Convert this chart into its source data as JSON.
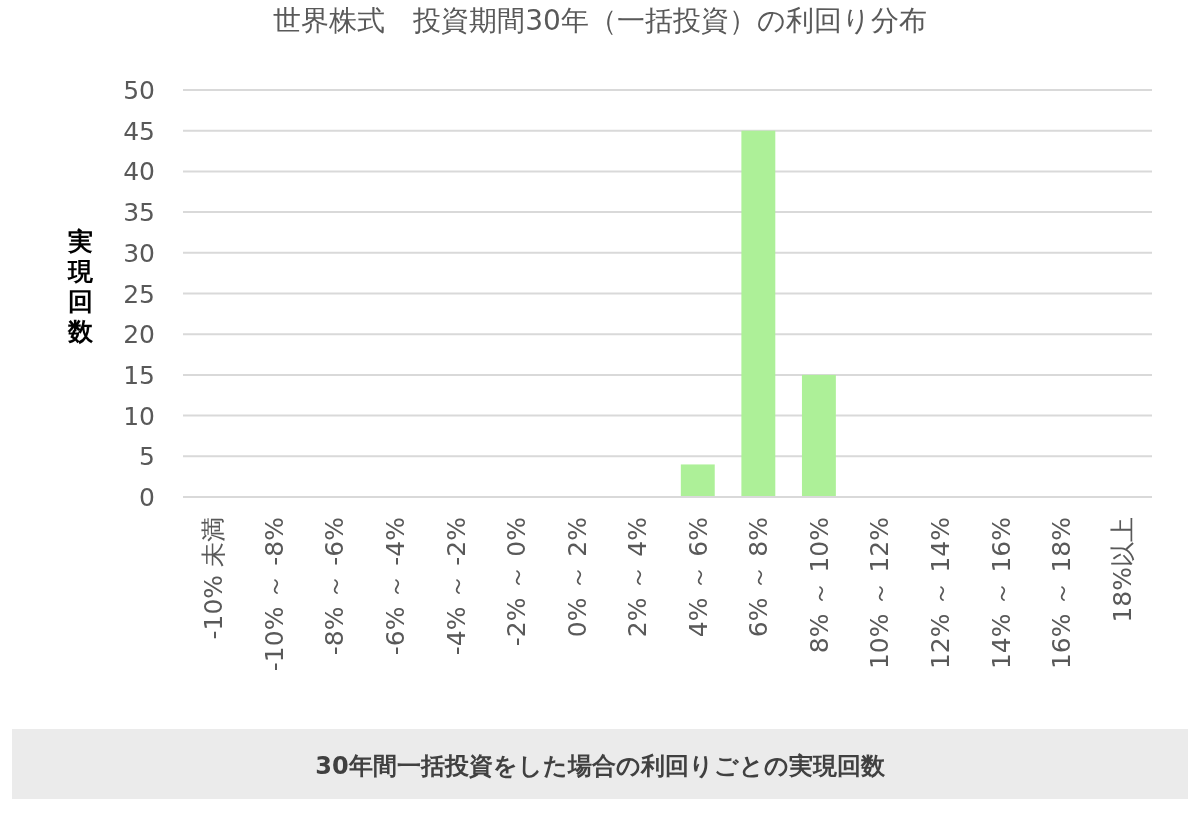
{
  "chart_data": {
    "type": "bar",
    "title": "世界株式　投資期間30年（一括投資）の利回り分布",
    "ylabel": "実現回数",
    "categories": [
      "-10% 未満",
      "-10% ～ -8%",
      "-8% ～ -6%",
      "-6% ～ -4%",
      "-4% ～ -2%",
      "-2% ～ 0%",
      "0% ～ 2%",
      "2% ～ 4%",
      "4% ～ 6%",
      "6% ～ 8%",
      "8% ～ 10%",
      "10% ～ 12%",
      "12% ～ 14%",
      "14% ～ 16%",
      "16% ～ 18%",
      "18%以上"
    ],
    "values": [
      0,
      0,
      0,
      0,
      0,
      0,
      0,
      0,
      4,
      45,
      15,
      0,
      0,
      0,
      0,
      0
    ],
    "color": "#adf098",
    "ylim": [
      0,
      50
    ],
    "yticks": [
      0,
      5,
      10,
      15,
      20,
      25,
      30,
      35,
      40,
      45,
      50
    ],
    "grid": "y",
    "annotations": [
      "30年間一括投資をした場合の利回りごとの実現回数"
    ]
  }
}
